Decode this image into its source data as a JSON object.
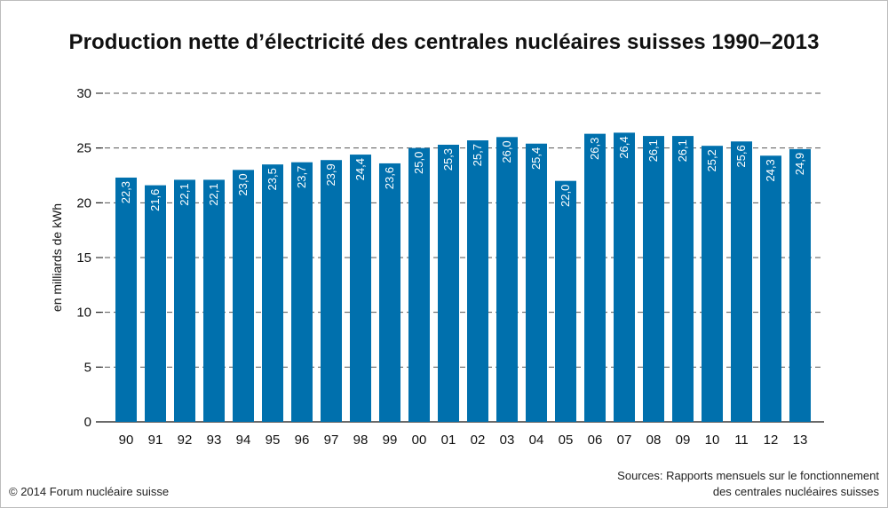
{
  "chart_data": {
    "type": "bar",
    "title": "Production nette d’électricité des centrales nucléaires suisses 1990–2013",
    "ylabel": "en milliards de kWh",
    "xlabel": "",
    "ylim": [
      0,
      30
    ],
    "yticks": [
      0,
      5,
      10,
      15,
      20,
      25,
      30
    ],
    "grid": "dashed horizontal",
    "categories": [
      "90",
      "91",
      "92",
      "93",
      "94",
      "95",
      "96",
      "97",
      "98",
      "99",
      "00",
      "01",
      "02",
      "03",
      "04",
      "05",
      "06",
      "07",
      "08",
      "09",
      "10",
      "11",
      "12",
      "13"
    ],
    "values": [
      22.3,
      21.6,
      22.1,
      22.1,
      23.0,
      23.5,
      23.7,
      23.9,
      24.4,
      23.6,
      25.0,
      25.3,
      25.7,
      26.0,
      25.4,
      22.0,
      26.3,
      26.4,
      26.1,
      26.1,
      25.2,
      25.6,
      24.3,
      24.9
    ],
    "value_labels": [
      "22,3",
      "21,6",
      "22,1",
      "22,1",
      "23,0",
      "23,5",
      "23,7",
      "23,9",
      "24,4",
      "23,6",
      "25,0",
      "25,3",
      "25,7",
      "26,0",
      "25,4",
      "22,0",
      "26,3",
      "26,4",
      "26,1",
      "26,1",
      "25,2",
      "25,6",
      "24,3",
      "24,9"
    ],
    "bar_color": "#0070ad"
  },
  "footer": {
    "copyright": "© 2014 Forum nucléaire suisse",
    "sources_line1": "Sources: Rapports mensuels sur le fonctionnement",
    "sources_line2": "des centrales nucléaires suisses"
  }
}
